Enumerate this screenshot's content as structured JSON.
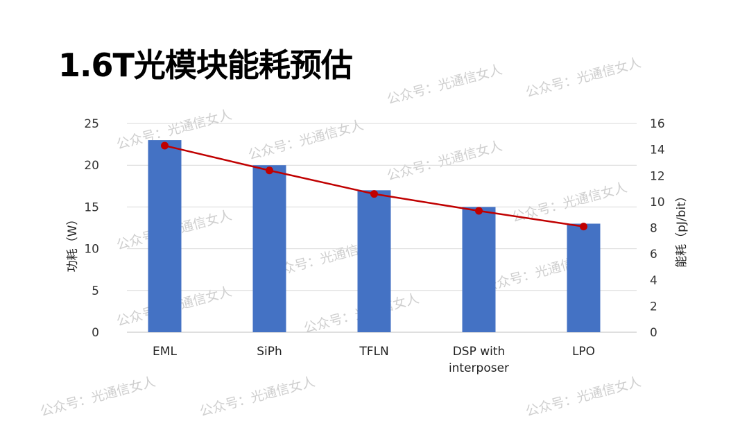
{
  "title": "1.6T光模块能耗预估",
  "watermark": "公众号：光通信女人",
  "chart_data": {
    "type": "bar+line",
    "title": "1.6T光模块能耗预估",
    "categories": [
      "EML",
      "SiPh",
      "TFLN",
      "DSP with interposer",
      "LPO"
    ],
    "category_lines": [
      [
        "EML"
      ],
      [
        "SiPh"
      ],
      [
        "TFLN"
      ],
      [
        "DSP with",
        "interposer"
      ],
      [
        "LPO"
      ]
    ],
    "series": [
      {
        "name": "功耗（W）",
        "type": "bar",
        "axis": "left",
        "color": "#4472C4",
        "values": [
          23,
          20,
          17,
          15,
          13
        ]
      },
      {
        "name": "能耗（pJ/bit）",
        "type": "line",
        "axis": "right",
        "color": "#C00000",
        "values": [
          14.3,
          12.4,
          10.6,
          9.3,
          8.1
        ]
      }
    ],
    "ylabel": "功耗（W）",
    "ylabel_right": "能耗（pJ/bit）",
    "ylim": [
      0,
      25
    ],
    "yticks": [
      0,
      5,
      10,
      15,
      20,
      25
    ],
    "ylim_right": [
      0,
      16
    ],
    "yticks_right": [
      0,
      2,
      4,
      6,
      8,
      10,
      12,
      14,
      16
    ],
    "grid": true
  }
}
